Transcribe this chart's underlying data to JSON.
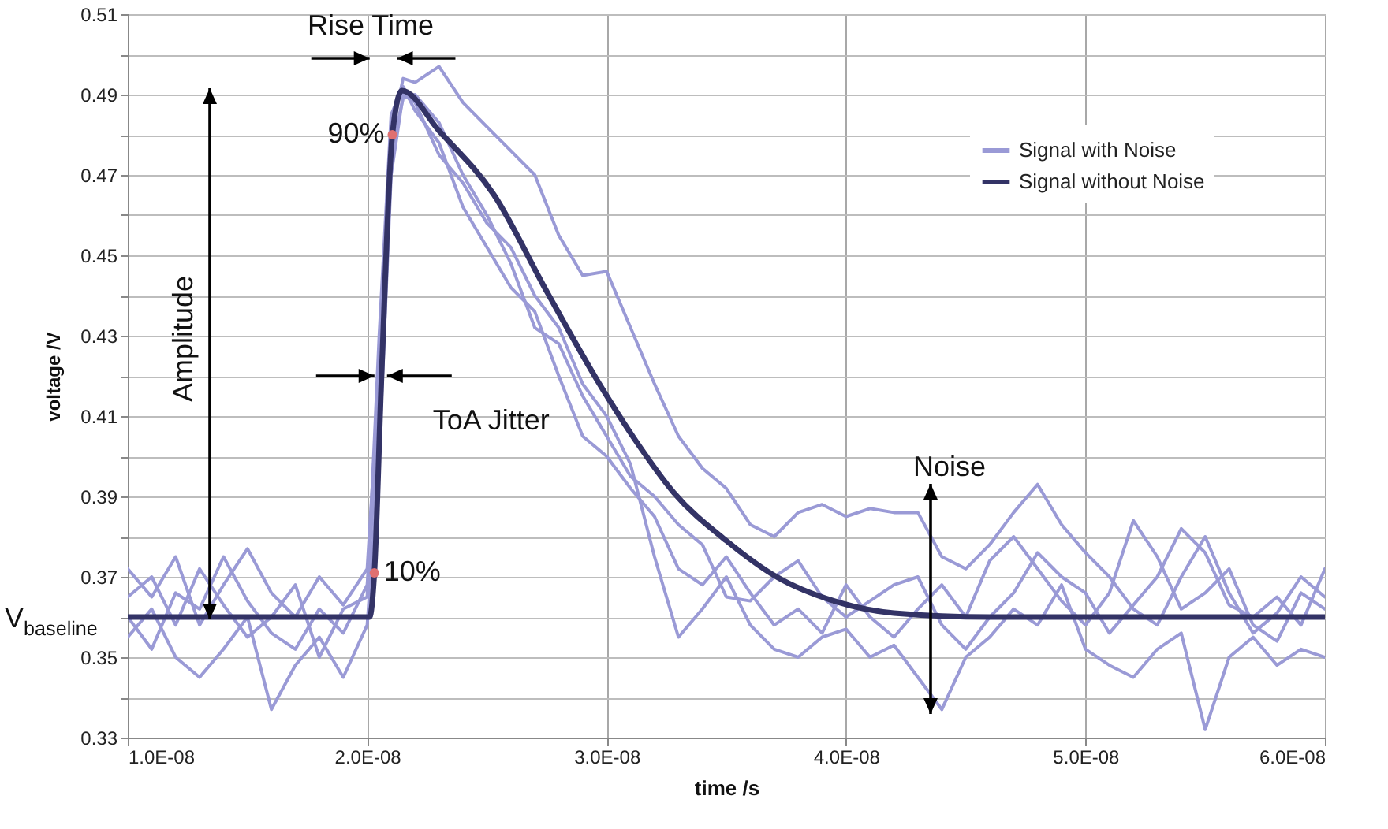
{
  "chart_data": {
    "type": "line",
    "xlabel": "time /s",
    "ylabel": "voltage /V",
    "x": [
      1e-08,
      1.1e-08,
      1.2e-08,
      1.3e-08,
      1.4e-08,
      1.5e-08,
      1.6e-08,
      1.7e-08,
      1.8e-08,
      1.9e-08,
      2e-08,
      2.05e-08,
      2.1e-08,
      2.15e-08,
      2.2e-08,
      2.3e-08,
      2.4e-08,
      2.5e-08,
      2.6e-08,
      2.7e-08,
      2.8e-08,
      2.9e-08,
      3e-08,
      3.1e-08,
      3.2e-08,
      3.3e-08,
      3.4e-08,
      3.5e-08,
      3.6e-08,
      3.7e-08,
      3.8e-08,
      3.9e-08,
      4e-08,
      4.1e-08,
      4.2e-08,
      4.3e-08,
      4.4e-08,
      4.5e-08,
      4.6e-08,
      4.7e-08,
      4.8e-08,
      4.9e-08,
      5e-08,
      5.1e-08,
      5.2e-08,
      5.3e-08,
      5.4e-08,
      5.5e-08,
      5.6e-08,
      5.7e-08,
      5.8e-08,
      5.9e-08,
      6e-08
    ],
    "series": [
      {
        "name": "Signal with Noise",
        "color": "#9a9ad6",
        "values": [
          0.372,
          0.365,
          0.375,
          0.358,
          0.368,
          0.377,
          0.366,
          0.36,
          0.37,
          0.363,
          0.372,
          0.42,
          0.48,
          0.494,
          0.493,
          0.497,
          0.488,
          0.482,
          0.476,
          0.47,
          0.455,
          0.445,
          0.446,
          0.432,
          0.418,
          0.405,
          0.397,
          0.392,
          0.383,
          0.38,
          0.386,
          0.388,
          0.385,
          0.387,
          0.386,
          0.386,
          0.375,
          0.372,
          0.378,
          0.386,
          0.393,
          0.383,
          0.376,
          0.37,
          0.362,
          0.358,
          0.37,
          0.38,
          0.366,
          0.356,
          0.361,
          0.37,
          0.365
        ]
      },
      {
        "color": "#9a9ad6",
        "values": [
          0.355,
          0.362,
          0.35,
          0.345,
          0.352,
          0.36,
          0.337,
          0.348,
          0.355,
          0.345,
          0.358,
          0.4,
          0.47,
          0.49,
          0.488,
          0.475,
          0.468,
          0.458,
          0.452,
          0.44,
          0.432,
          0.418,
          0.41,
          0.398,
          0.375,
          0.355,
          0.362,
          0.37,
          0.358,
          0.352,
          0.35,
          0.355,
          0.357,
          0.35,
          0.353,
          0.345,
          0.337,
          0.35,
          0.355,
          0.362,
          0.358,
          0.368,
          0.352,
          0.348,
          0.345,
          0.352,
          0.356,
          0.332,
          0.35,
          0.355,
          0.348,
          0.352,
          0.35
        ]
      },
      {
        "color": "#9a9ad6",
        "values": [
          0.365,
          0.37,
          0.358,
          0.372,
          0.363,
          0.355,
          0.36,
          0.368,
          0.35,
          0.362,
          0.365,
          0.43,
          0.485,
          0.492,
          0.486,
          0.478,
          0.462,
          0.452,
          0.442,
          0.436,
          0.42,
          0.405,
          0.4,
          0.392,
          0.385,
          0.372,
          0.368,
          0.375,
          0.366,
          0.358,
          0.362,
          0.356,
          0.368,
          0.36,
          0.355,
          0.362,
          0.368,
          0.36,
          0.374,
          0.38,
          0.372,
          0.364,
          0.358,
          0.366,
          0.384,
          0.375,
          0.362,
          0.366,
          0.372,
          0.358,
          0.354,
          0.366,
          0.362
        ]
      },
      {
        "color": "#9a9ad6",
        "values": [
          0.36,
          0.352,
          0.366,
          0.362,
          0.375,
          0.364,
          0.356,
          0.352,
          0.362,
          0.356,
          0.368,
          0.41,
          0.476,
          0.489,
          0.49,
          0.483,
          0.47,
          0.46,
          0.448,
          0.432,
          0.428,
          0.415,
          0.405,
          0.395,
          0.39,
          0.383,
          0.378,
          0.365,
          0.364,
          0.37,
          0.374,
          0.365,
          0.36,
          0.364,
          0.368,
          0.37,
          0.358,
          0.352,
          0.36,
          0.366,
          0.376,
          0.37,
          0.366,
          0.356,
          0.363,
          0.37,
          0.382,
          0.376,
          0.363,
          0.36,
          0.365,
          0.358,
          0.372
        ]
      },
      {
        "name": "Signal without Noise",
        "color": "#333366",
        "x": [
          1e-08,
          2.01e-08,
          2.03e-08,
          2.06e-08,
          2.105e-08,
          2.145e-08,
          2.3e-08,
          2.53e-08,
          2.75e-08,
          2.97e-08,
          3.12e-08,
          3.28e-08,
          3.5e-08,
          3.71e-08,
          3.95e-08,
          4.2e-08,
          4.6e-08,
          6e-08
        ],
        "values": [
          0.36,
          0.36,
          0.371,
          0.42,
          0.48,
          0.491,
          0.481,
          0.465,
          0.441,
          0.418,
          0.404,
          0.391,
          0.379,
          0.37,
          0.364,
          0.361,
          0.36,
          0.36
        ]
      }
    ],
    "xlim": [
      1e-08,
      6e-08
    ],
    "xticks": [
      {
        "value": 1e-08,
        "label": "1.0E-08"
      },
      {
        "value": 2e-08,
        "label": "2.0E-08"
      },
      {
        "value": 3e-08,
        "label": "3.0E-08"
      },
      {
        "value": 4e-08,
        "label": "4.0E-08"
      },
      {
        "value": 5e-08,
        "label": "5.0E-08"
      },
      {
        "value": 6e-08,
        "label": "6.0E-08"
      }
    ],
    "ylim": [
      0.33,
      0.51
    ],
    "yticks": [
      0.33,
      {
        "value": 0.34,
        "label": null
      },
      0.35,
      {
        "value": 0.36,
        "label": null
      },
      0.37,
      {
        "value": 0.38,
        "label": null
      },
      0.39,
      {
        "value": 0.4,
        "label": null
      },
      0.41,
      {
        "value": 0.42,
        "label": null
      },
      0.43,
      {
        "value": 0.44,
        "label": null
      },
      0.45,
      {
        "value": 0.46,
        "label": null
      },
      0.47,
      {
        "value": 0.48,
        "label": null
      },
      0.49,
      {
        "value": 0.5,
        "label": null
      },
      0.51
    ],
    "grid": true,
    "legend": "top right",
    "annotations": [
      "Rise Time",
      {
        "text": "ToA Jitter",
        "x": 2.05e-08,
        "y": 0.42
      },
      "Amplitude",
      "Noise",
      {
        "text": "90%",
        "x": 2.105e-08,
        "y": 0.48
      },
      {
        "text": "10%",
        "x": 2.03e-08,
        "y": 0.371
      },
      "V$_{baseline}$"
    ]
  }
}
